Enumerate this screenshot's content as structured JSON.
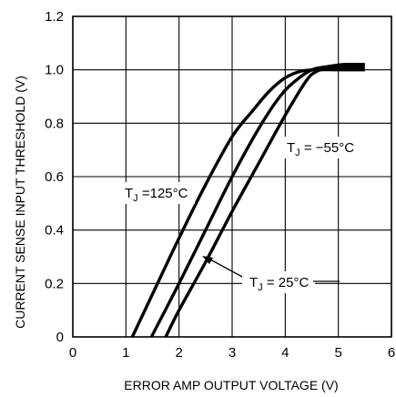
{
  "chart_data": {
    "type": "line",
    "title": "",
    "xlabel": "ERROR AMP OUTPUT VOLTAGE (V)",
    "ylabel": "CURRENT SENSE INPUT THRESHOLD (V)",
    "xlim": [
      0,
      6
    ],
    "ylim": [
      0,
      1.2
    ],
    "x_ticks": [
      "0",
      "1",
      "2",
      "3",
      "4",
      "5",
      "6"
    ],
    "y_ticks": [
      "0",
      "0.2",
      "0.4",
      "0.6",
      "0.8",
      "1.0",
      "1.2"
    ],
    "grid": true,
    "legend": "none",
    "line_color": "#000000",
    "series": [
      {
        "name": "TJ = 125°C",
        "x": [
          1.12,
          1.5,
          2.0,
          2.5,
          3.0,
          3.4,
          3.7,
          4.0,
          4.3,
          4.6,
          5.0,
          5.5
        ],
        "y": [
          0.0,
          0.16,
          0.37,
          0.57,
          0.75,
          0.85,
          0.92,
          0.97,
          0.995,
          1.0,
          1.0,
          1.0
        ]
      },
      {
        "name": "TJ = −55°C",
        "x": [
          1.48,
          2.0,
          2.5,
          3.0,
          3.5,
          3.9,
          4.2,
          4.5,
          4.8,
          5.1,
          5.5
        ],
        "y": [
          0.0,
          0.2,
          0.4,
          0.6,
          0.78,
          0.9,
          0.96,
          1.0,
          1.012,
          1.02,
          1.02
        ]
      },
      {
        "name": "TJ = 25°C",
        "x": [
          1.75,
          2.0,
          2.5,
          3.0,
          3.5,
          4.0,
          4.4,
          4.6,
          4.8,
          5.1,
          5.5
        ],
        "y": [
          0.0,
          0.1,
          0.28,
          0.47,
          0.65,
          0.83,
          0.96,
          0.995,
          1.005,
          1.01,
          1.01
        ]
      }
    ],
    "annotations": [
      {
        "text_main": "T",
        "text_sub": "J",
        "text_rest": " =125°C"
      },
      {
        "text_main": "T",
        "text_sub": "J",
        "text_rest": " = −55°C"
      },
      {
        "text_main": "T",
        "text_sub": "J",
        "text_rest": " = 25°C"
      }
    ]
  }
}
